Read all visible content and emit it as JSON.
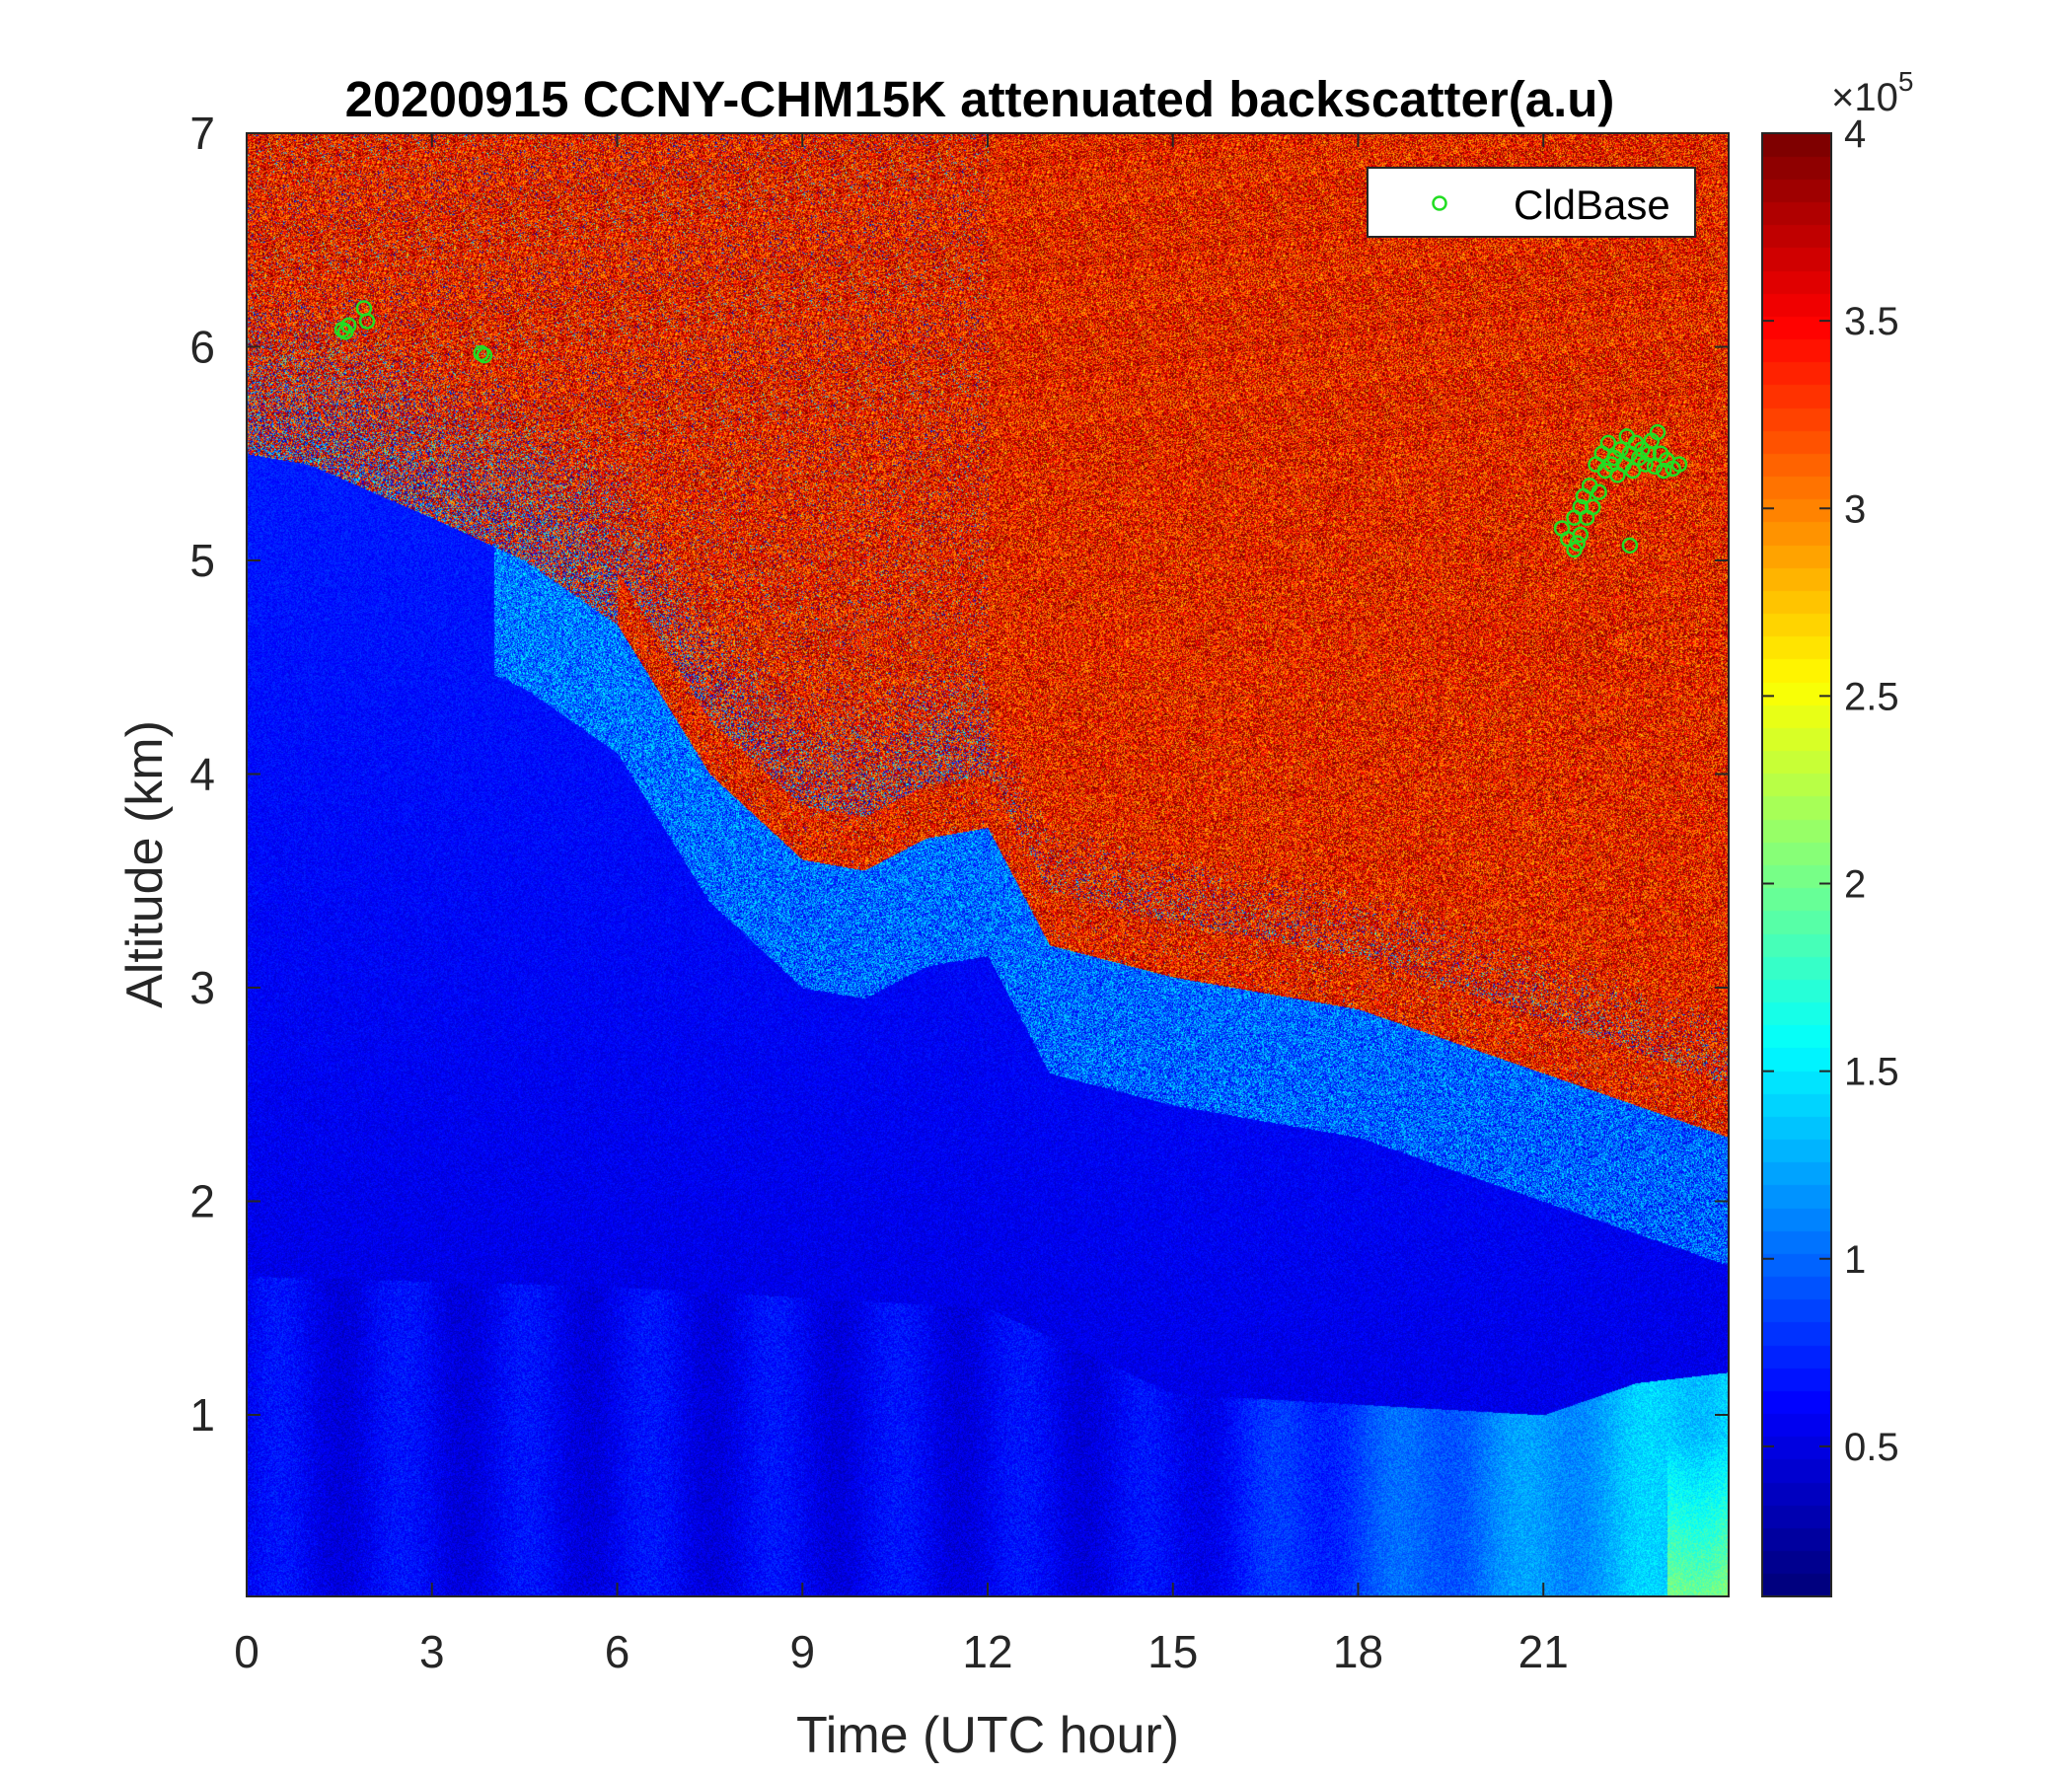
{
  "chart_data": {
    "type": "heatmap",
    "title": "20200915 CCNY-CHM15K attenuated backscatter(a.u)",
    "xlabel": "Time (UTC hour)",
    "ylabel": "Altitude (km)",
    "xlim": [
      0,
      24
    ],
    "ylim": [
      0.15,
      7
    ],
    "x_ticks": [
      0,
      3,
      6,
      9,
      12,
      15,
      18,
      21
    ],
    "y_ticks": [
      1,
      2,
      3,
      4,
      5,
      6,
      7
    ],
    "colorbar": {
      "colormap": "jet",
      "clim": [
        0.1,
        4
      ],
      "ticks": [
        0.5,
        1,
        1.5,
        2,
        2.5,
        3,
        3.5,
        4
      ],
      "multiplier": "×10",
      "exponent": "5"
    },
    "legend": {
      "location": "top-right",
      "entries": [
        "CldBase"
      ],
      "marker_color": "#22dd22"
    },
    "features": {
      "cloud_layer_top_km": [
        [
          0,
          5.5
        ],
        [
          1,
          5.45
        ],
        [
          3,
          5.2
        ],
        [
          4.5,
          5.0
        ],
        [
          6,
          4.7
        ],
        [
          7.5,
          4.0
        ],
        [
          9,
          3.6
        ],
        [
          10,
          3.55
        ],
        [
          11,
          3.7
        ],
        [
          12,
          3.75
        ],
        [
          13,
          3.2
        ],
        [
          15,
          3.05
        ],
        [
          18,
          2.9
        ],
        [
          20,
          2.7
        ],
        [
          22,
          2.5
        ],
        [
          24,
          2.3
        ]
      ],
      "boundary_layer_top_km": [
        [
          0,
          1.65
        ],
        [
          6,
          1.6
        ],
        [
          12,
          1.5
        ],
        [
          15,
          1.1
        ],
        [
          18,
          1.05
        ],
        [
          21,
          1.0
        ],
        [
          22.5,
          1.15
        ],
        [
          24,
          1.2
        ]
      ]
    },
    "series": [
      {
        "name": "CldBase",
        "marker": "circle",
        "x": [
          1.55,
          1.6,
          1.65,
          1.9,
          1.95,
          3.8,
          3.85,
          21.3,
          21.4,
          21.5,
          21.5,
          21.55,
          21.6,
          21.6,
          21.65,
          21.7,
          21.75,
          21.8,
          21.85,
          21.9,
          21.95,
          22.0,
          22.05,
          22.1,
          22.15,
          22.2,
          22.25,
          22.3,
          22.35,
          22.4,
          22.45,
          22.5,
          22.55,
          22.6,
          22.65,
          22.7,
          22.75,
          22.8,
          22.85,
          22.9,
          22.95,
          23.0,
          23.1,
          23.2,
          22.4
        ],
        "y": [
          6.08,
          6.07,
          6.1,
          6.18,
          6.12,
          5.97,
          5.96,
          5.15,
          5.1,
          5.05,
          5.2,
          5.08,
          5.25,
          5.12,
          5.3,
          5.2,
          5.35,
          5.25,
          5.45,
          5.32,
          5.5,
          5.42,
          5.55,
          5.45,
          5.48,
          5.4,
          5.52,
          5.45,
          5.58,
          5.5,
          5.42,
          5.55,
          5.48,
          5.52,
          5.45,
          5.5,
          5.56,
          5.44,
          5.6,
          5.5,
          5.42,
          5.47,
          5.43,
          5.45,
          5.07
        ]
      }
    ]
  }
}
